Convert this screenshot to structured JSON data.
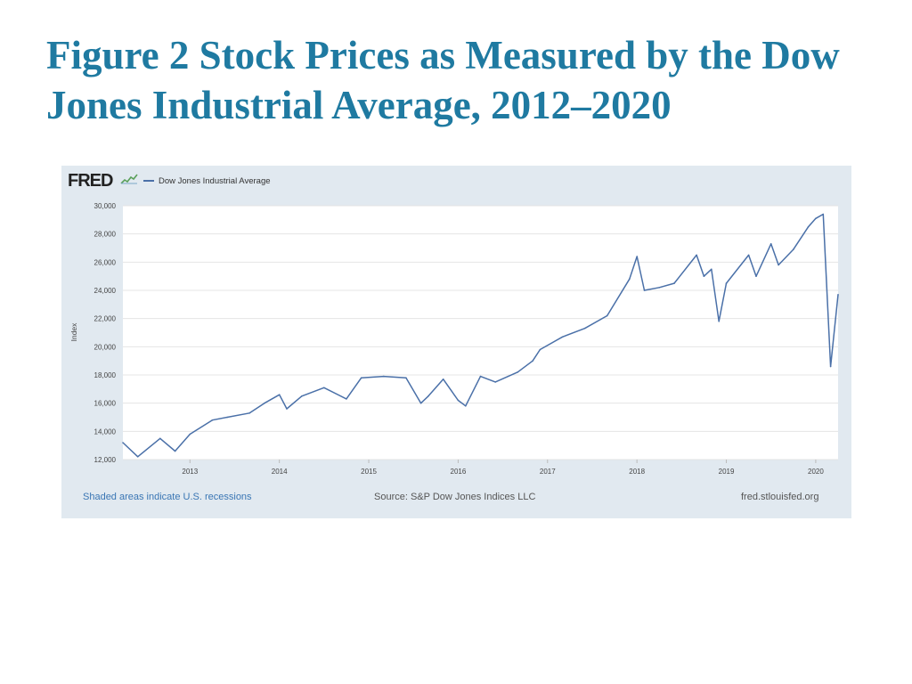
{
  "slide": {
    "title": "Figure 2 Stock Prices as Measured by the Dow Jones Industrial Average, 2012–2020"
  },
  "fred": {
    "logo_text": "FRED",
    "footer_recessions": "Shaded areas indicate U.S. recessions",
    "footer_source": "Source: S&P Dow Jones Indices LLC",
    "footer_site": "fred.stlouisfed.org"
  },
  "chart_data": {
    "type": "line",
    "title": "",
    "xlabel": "",
    "ylabel": "Index",
    "ylim": [
      12000,
      30000
    ],
    "xlim": [
      "2012-04",
      "2020-04"
    ],
    "grid": true,
    "legend_position": "top-left",
    "y_ticks": [
      "12,000",
      "14,000",
      "16,000",
      "18,000",
      "20,000",
      "22,000",
      "24,000",
      "26,000",
      "28,000",
      "30,000"
    ],
    "x_ticks": [
      "2013",
      "2014",
      "2015",
      "2016",
      "2017",
      "2018",
      "2019",
      "2020"
    ],
    "series": [
      {
        "name": "Dow Jones Industrial Average",
        "color": "#4a70a8",
        "x": [
          "2012-04",
          "2012-06",
          "2012-09",
          "2012-11",
          "2013-01",
          "2013-04",
          "2013-06",
          "2013-09",
          "2013-11",
          "2014-01",
          "2014-02",
          "2014-04",
          "2014-07",
          "2014-10",
          "2014-12",
          "2015-03",
          "2015-06",
          "2015-08",
          "2015-09",
          "2015-11",
          "2016-01",
          "2016-02",
          "2016-04",
          "2016-06",
          "2016-09",
          "2016-11",
          "2016-12",
          "2017-03",
          "2017-06",
          "2017-09",
          "2017-12",
          "2018-01",
          "2018-02",
          "2018-04",
          "2018-06",
          "2018-09",
          "2018-10",
          "2018-11",
          "2018-12",
          "2019-01",
          "2019-04",
          "2019-05",
          "2019-07",
          "2019-08",
          "2019-10",
          "2019-12",
          "2020-01",
          "2020-02",
          "2020-03",
          "2020-04"
        ],
        "values": [
          13200,
          12200,
          13500,
          12600,
          13800,
          14800,
          15000,
          15300,
          16000,
          16600,
          15600,
          16500,
          17100,
          16300,
          17800,
          17900,
          17800,
          16000,
          16500,
          17700,
          16200,
          15800,
          17900,
          17500,
          18200,
          19000,
          19800,
          20700,
          21300,
          22200,
          24800,
          26400,
          24000,
          24200,
          24500,
          26500,
          25000,
          25500,
          21800,
          24500,
          26500,
          25000,
          27300,
          25800,
          26900,
          28500,
          29100,
          29400,
          18600,
          23700
        ]
      }
    ]
  }
}
